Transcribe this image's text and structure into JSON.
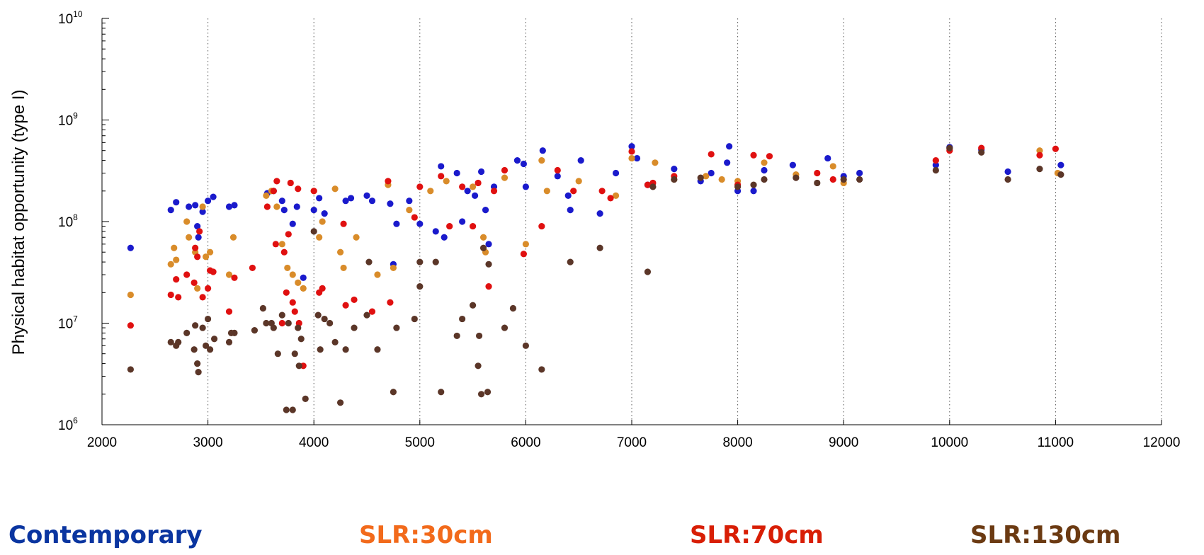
{
  "chart_data": {
    "type": "scatter",
    "ylabel": "Physical habitat opportunity (type I)",
    "xlabel": "",
    "xlim": [
      2000,
      12000
    ],
    "xticks": [
      2000,
      3000,
      4000,
      5000,
      6000,
      7000,
      8000,
      9000,
      10000,
      11000,
      12000
    ],
    "ylim": [
      1000000,
      10000000000
    ],
    "yscale": "log",
    "yticks": [
      {
        "base": "10",
        "exp": "6",
        "value": 1000000
      },
      {
        "base": "10",
        "exp": "7",
        "value": 10000000
      },
      {
        "base": "10",
        "exp": "8",
        "value": 100000000
      },
      {
        "base": "10",
        "exp": "9",
        "value": 1000000000
      },
      {
        "base": "10",
        "exp": "10",
        "value": 10000000000
      }
    ],
    "grid": "vertical dotted at x ticks",
    "legend": [
      {
        "label": "Contemporary",
        "color": "#0a35a0"
      },
      {
        "label": "SLR:30cm",
        "color": "#f26a1b"
      },
      {
        "label": "SLR:70cm",
        "color": "#d81e05"
      },
      {
        "label": "SLR:130cm",
        "color": "#6b3a12"
      }
    ],
    "series": [
      {
        "color": "#1a1acc",
        "points": [
          [
            2270,
            55000000
          ],
          [
            2650,
            130000000
          ],
          [
            2700,
            155000000
          ],
          [
            2820,
            140000000
          ],
          [
            2880,
            145000000
          ],
          [
            2900,
            90000000
          ],
          [
            2910,
            70000000
          ],
          [
            2950,
            125000000
          ],
          [
            3000,
            160000000
          ],
          [
            3050,
            175000000
          ],
          [
            3200,
            140000000
          ],
          [
            3250,
            145000000
          ],
          [
            3560,
            190000000
          ],
          [
            3620,
            200000000
          ],
          [
            3700,
            160000000
          ],
          [
            3720,
            130000000
          ],
          [
            3800,
            95000000
          ],
          [
            3840,
            140000000
          ],
          [
            3900,
            28000000
          ],
          [
            4000,
            130000000
          ],
          [
            4050,
            170000000
          ],
          [
            4100,
            120000000
          ],
          [
            4300,
            160000000
          ],
          [
            4350,
            170000000
          ],
          [
            4500,
            180000000
          ],
          [
            4550,
            160000000
          ],
          [
            4720,
            150000000
          ],
          [
            4750,
            38000000
          ],
          [
            4780,
            95000000
          ],
          [
            4900,
            160000000
          ],
          [
            5000,
            95000000
          ],
          [
            5150,
            80000000
          ],
          [
            5200,
            350000000
          ],
          [
            5230,
            70000000
          ],
          [
            5350,
            300000000
          ],
          [
            5400,
            100000000
          ],
          [
            5450,
            200000000
          ],
          [
            5520,
            180000000
          ],
          [
            5580,
            310000000
          ],
          [
            5620,
            130000000
          ],
          [
            5650,
            60000000
          ],
          [
            5700,
            220000000
          ],
          [
            5920,
            400000000
          ],
          [
            5980,
            370000000
          ],
          [
            6000,
            220000000
          ],
          [
            6160,
            500000000
          ],
          [
            6300,
            280000000
          ],
          [
            6400,
            180000000
          ],
          [
            6420,
            130000000
          ],
          [
            6520,
            400000000
          ],
          [
            6700,
            120000000
          ],
          [
            6850,
            300000000
          ],
          [
            7000,
            550000000
          ],
          [
            7050,
            420000000
          ],
          [
            7150,
            230000000
          ],
          [
            7400,
            330000000
          ],
          [
            7650,
            250000000
          ],
          [
            7750,
            300000000
          ],
          [
            7900,
            380000000
          ],
          [
            7920,
            550000000
          ],
          [
            8000,
            200000000
          ],
          [
            8150,
            200000000
          ],
          [
            8250,
            320000000
          ],
          [
            8520,
            360000000
          ],
          [
            8850,
            420000000
          ],
          [
            9000,
            280000000
          ],
          [
            9150,
            300000000
          ],
          [
            9870,
            360000000
          ],
          [
            10000,
            540000000
          ],
          [
            10300,
            510000000
          ],
          [
            10550,
            310000000
          ],
          [
            11050,
            360000000
          ]
        ]
      },
      {
        "color": "#d98c2a",
        "points": [
          [
            2270,
            19000000
          ],
          [
            2650,
            38000000
          ],
          [
            2680,
            55000000
          ],
          [
            2700,
            42000000
          ],
          [
            2800,
            100000000
          ],
          [
            2820,
            70000000
          ],
          [
            2880,
            50000000
          ],
          [
            2900,
            22000000
          ],
          [
            2950,
            140000000
          ],
          [
            2980,
            45000000
          ],
          [
            3020,
            50000000
          ],
          [
            3200,
            30000000
          ],
          [
            3240,
            70000000
          ],
          [
            3550,
            180000000
          ],
          [
            3600,
            200000000
          ],
          [
            3650,
            140000000
          ],
          [
            3700,
            60000000
          ],
          [
            3750,
            35000000
          ],
          [
            3800,
            30000000
          ],
          [
            3850,
            25000000
          ],
          [
            3900,
            22000000
          ],
          [
            4000,
            200000000
          ],
          [
            4050,
            70000000
          ],
          [
            4080,
            100000000
          ],
          [
            4200,
            210000000
          ],
          [
            4250,
            50000000
          ],
          [
            4280,
            35000000
          ],
          [
            4400,
            70000000
          ],
          [
            4600,
            30000000
          ],
          [
            4700,
            230000000
          ],
          [
            4750,
            35000000
          ],
          [
            4900,
            130000000
          ],
          [
            5100,
            200000000
          ],
          [
            5250,
            250000000
          ],
          [
            5500,
            220000000
          ],
          [
            5600,
            70000000
          ],
          [
            5620,
            50000000
          ],
          [
            5800,
            270000000
          ],
          [
            6000,
            60000000
          ],
          [
            6150,
            400000000
          ],
          [
            6200,
            200000000
          ],
          [
            6500,
            250000000
          ],
          [
            6850,
            180000000
          ],
          [
            7000,
            420000000
          ],
          [
            7220,
            380000000
          ],
          [
            7400,
            260000000
          ],
          [
            7700,
            280000000
          ],
          [
            7850,
            260000000
          ],
          [
            8000,
            250000000
          ],
          [
            8250,
            380000000
          ],
          [
            8550,
            290000000
          ],
          [
            8900,
            350000000
          ],
          [
            9000,
            240000000
          ],
          [
            10000,
            520000000
          ],
          [
            10850,
            500000000
          ],
          [
            11020,
            300000000
          ]
        ]
      },
      {
        "color": "#e01010",
        "points": [
          [
            2270,
            9500000
          ],
          [
            2650,
            19000000
          ],
          [
            2700,
            27000000
          ],
          [
            2720,
            18000000
          ],
          [
            2800,
            30000000
          ],
          [
            2870,
            25000000
          ],
          [
            2880,
            55000000
          ],
          [
            2900,
            45000000
          ],
          [
            2920,
            80000000
          ],
          [
            2950,
            18000000
          ],
          [
            3000,
            22000000
          ],
          [
            3020,
            33000000
          ],
          [
            3050,
            32000000
          ],
          [
            3200,
            13000000
          ],
          [
            3250,
            28000000
          ],
          [
            3420,
            35000000
          ],
          [
            3560,
            140000000
          ],
          [
            3620,
            200000000
          ],
          [
            3640,
            60000000
          ],
          [
            3650,
            250000000
          ],
          [
            3700,
            10000000
          ],
          [
            3720,
            50000000
          ],
          [
            3740,
            20000000
          ],
          [
            3760,
            75000000
          ],
          [
            3780,
            240000000
          ],
          [
            3800,
            16000000
          ],
          [
            3820,
            13000000
          ],
          [
            3850,
            210000000
          ],
          [
            3860,
            10000000
          ],
          [
            3900,
            3800000
          ],
          [
            4000,
            200000000
          ],
          [
            4050,
            20000000
          ],
          [
            4080,
            22000000
          ],
          [
            4280,
            95000000
          ],
          [
            4300,
            15000000
          ],
          [
            4380,
            17000000
          ],
          [
            4550,
            13000000
          ],
          [
            4700,
            250000000
          ],
          [
            4720,
            16000000
          ],
          [
            4950,
            110000000
          ],
          [
            5000,
            220000000
          ],
          [
            5200,
            280000000
          ],
          [
            5280,
            90000000
          ],
          [
            5400,
            220000000
          ],
          [
            5500,
            90000000
          ],
          [
            5550,
            240000000
          ],
          [
            5650,
            23000000
          ],
          [
            5700,
            200000000
          ],
          [
            5800,
            320000000
          ],
          [
            5980,
            48000000
          ],
          [
            6150,
            90000000
          ],
          [
            6300,
            320000000
          ],
          [
            6450,
            200000000
          ],
          [
            6720,
            200000000
          ],
          [
            6800,
            170000000
          ],
          [
            7000,
            490000000
          ],
          [
            7150,
            230000000
          ],
          [
            7200,
            240000000
          ],
          [
            7400,
            280000000
          ],
          [
            7750,
            460000000
          ],
          [
            8000,
            230000000
          ],
          [
            8150,
            450000000
          ],
          [
            8300,
            440000000
          ],
          [
            8750,
            300000000
          ],
          [
            8900,
            260000000
          ],
          [
            9870,
            400000000
          ],
          [
            10000,
            500000000
          ],
          [
            10300,
            530000000
          ],
          [
            10850,
            450000000
          ],
          [
            11000,
            520000000
          ]
        ]
      },
      {
        "color": "#5b3628",
        "points": [
          [
            2270,
            3500000
          ],
          [
            2650,
            6500000
          ],
          [
            2700,
            6000000
          ],
          [
            2720,
            6500000
          ],
          [
            2800,
            8000000
          ],
          [
            2870,
            5500000
          ],
          [
            2880,
            9500000
          ],
          [
            2900,
            4000000
          ],
          [
            2910,
            3300000
          ],
          [
            2950,
            9000000
          ],
          [
            2980,
            6000000
          ],
          [
            3000,
            11000000
          ],
          [
            3020,
            5500000
          ],
          [
            3060,
            7000000
          ],
          [
            3200,
            6500000
          ],
          [
            3220,
            8000000
          ],
          [
            3250,
            8000000
          ],
          [
            3440,
            8500000
          ],
          [
            3520,
            14000000
          ],
          [
            3550,
            10000000
          ],
          [
            3600,
            10000000
          ],
          [
            3620,
            9000000
          ],
          [
            3660,
            5000000
          ],
          [
            3700,
            12000000
          ],
          [
            3740,
            1400000
          ],
          [
            3760,
            10000000
          ],
          [
            3800,
            1400000
          ],
          [
            3820,
            5000000
          ],
          [
            3850,
            9000000
          ],
          [
            3860,
            3800000
          ],
          [
            3880,
            7000000
          ],
          [
            3920,
            1800000
          ],
          [
            4000,
            80000000
          ],
          [
            4040,
            12000000
          ],
          [
            4060,
            5500000
          ],
          [
            4100,
            11000000
          ],
          [
            4150,
            10000000
          ],
          [
            4200,
            6500000
          ],
          [
            4250,
            1650000
          ],
          [
            4300,
            5500000
          ],
          [
            4380,
            9000000
          ],
          [
            4500,
            12000000
          ],
          [
            4520,
            40000000
          ],
          [
            4600,
            5500000
          ],
          [
            4750,
            2100000
          ],
          [
            4780,
            9000000
          ],
          [
            4950,
            11000000
          ],
          [
            5000,
            40000000
          ],
          [
            5000,
            23000000
          ],
          [
            5150,
            40000000
          ],
          [
            5200,
            2100000
          ],
          [
            5350,
            7500000
          ],
          [
            5400,
            11000000
          ],
          [
            5500,
            15000000
          ],
          [
            5550,
            3800000
          ],
          [
            5560,
            7500000
          ],
          [
            5580,
            2000000
          ],
          [
            5600,
            55000000
          ],
          [
            5640,
            2100000
          ],
          [
            5650,
            38000000
          ],
          [
            5800,
            9000000
          ],
          [
            5880,
            14000000
          ],
          [
            6000,
            6000000
          ],
          [
            6150,
            3500000
          ],
          [
            6420,
            40000000
          ],
          [
            6700,
            55000000
          ],
          [
            7150,
            32000000
          ],
          [
            7200,
            220000000
          ],
          [
            7400,
            260000000
          ],
          [
            7650,
            270000000
          ],
          [
            8000,
            220000000
          ],
          [
            8150,
            230000000
          ],
          [
            8250,
            260000000
          ],
          [
            8550,
            270000000
          ],
          [
            8750,
            240000000
          ],
          [
            9000,
            260000000
          ],
          [
            9150,
            260000000
          ],
          [
            9870,
            320000000
          ],
          [
            10000,
            530000000
          ],
          [
            10300,
            480000000
          ],
          [
            10550,
            260000000
          ],
          [
            10850,
            330000000
          ],
          [
            11050,
            290000000
          ]
        ]
      }
    ]
  }
}
